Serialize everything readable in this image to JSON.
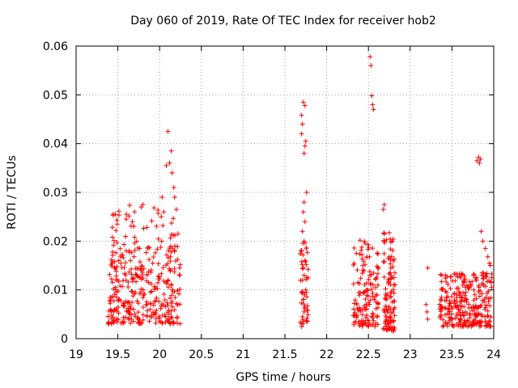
{
  "chart_data": {
    "type": "scatter",
    "title": "Day 060 of 2019, Rate Of TEC Index for receiver hob2",
    "xlabel": "GPS time / hours",
    "ylabel": "ROTI / TECUs",
    "xlim": [
      19,
      24
    ],
    "ylim": [
      0,
      0.06
    ],
    "x_ticks": [
      "19",
      "19.5",
      "20",
      "20.5",
      "21",
      "21.5",
      "22",
      "22.5",
      "23",
      "23.5",
      "24"
    ],
    "y_ticks": [
      "0",
      "0.01",
      "0.02",
      "0.03",
      "0.04",
      "0.05",
      "0.06"
    ],
    "grid": true,
    "marker": "+",
    "series": [
      {
        "name": "ROTI",
        "color": "#ff0000",
        "clusters": [
          {
            "x_range": [
              19.38,
              20.25
            ],
            "y_range": [
              0.003,
              0.019
            ],
            "count": 320
          },
          {
            "x_range": [
              19.4,
              20.2
            ],
            "y_range": [
              0.018,
              0.028
            ],
            "count": 45
          }
        ],
        "points": [
          [
            20.1,
            0.0425
          ],
          [
            20.14,
            0.0385
          ],
          [
            20.12,
            0.036
          ],
          [
            20.08,
            0.0355
          ],
          [
            20.15,
            0.034
          ],
          [
            20.17,
            0.031
          ],
          [
            20.18,
            0.029
          ],
          [
            20.2,
            0.0265
          ],
          [
            20.03,
            0.029
          ],
          [
            20.05,
            0.026
          ],
          [
            20.22,
            0.0215
          ],
          [
            20.24,
            0.0145
          ],
          [
            19.8,
            0.0275
          ],
          [
            19.78,
            0.027
          ],
          [
            19.7,
            0.026
          ],
          [
            19.6,
            0.0245
          ],
          [
            19.47,
            0.0255
          ],
          [
            20.02,
            0.025
          ],
          [
            21.72,
            0.0485
          ],
          [
            21.74,
            0.0478
          ],
          [
            21.7,
            0.0458
          ],
          [
            21.71,
            0.044
          ],
          [
            21.7,
            0.042
          ],
          [
            21.75,
            0.0405
          ],
          [
            21.74,
            0.0395
          ],
          [
            21.73,
            0.038
          ],
          [
            21.76,
            0.03
          ],
          [
            21.73,
            0.028
          ],
          [
            21.72,
            0.026
          ],
          [
            21.74,
            0.024
          ],
          [
            21.71,
            0.022
          ],
          [
            21.73,
            0.02
          ],
          [
            21.7,
            0.018
          ],
          [
            21.74,
            0.016
          ],
          [
            21.72,
            0.0145
          ],
          [
            21.73,
            0.013
          ],
          [
            21.71,
            0.012
          ],
          [
            21.75,
            0.01
          ],
          [
            21.7,
            0.0095
          ],
          [
            21.72,
            0.008
          ],
          [
            21.74,
            0.0065
          ],
          [
            21.73,
            0.0055
          ],
          [
            21.71,
            0.0045
          ],
          [
            21.72,
            0.0035
          ],
          [
            21.7,
            0.0025
          ],
          [
            22.52,
            0.0578
          ],
          [
            22.53,
            0.056
          ],
          [
            22.54,
            0.0498
          ],
          [
            22.55,
            0.048
          ],
          [
            22.56,
            0.047
          ],
          [
            22.69,
            0.0275
          ],
          [
            22.68,
            0.0265
          ],
          [
            23.21,
            0.0145
          ],
          [
            23.19,
            0.007
          ],
          [
            23.2,
            0.0055
          ],
          [
            23.21,
            0.004
          ],
          [
            23.82,
            0.0372
          ],
          [
            23.84,
            0.0368
          ],
          [
            23.8,
            0.0365
          ],
          [
            23.83,
            0.036
          ],
          [
            23.85,
            0.022
          ],
          [
            23.87,
            0.02
          ],
          [
            23.9,
            0.0185
          ],
          [
            23.93,
            0.0168
          ],
          [
            23.95,
            0.0155
          ],
          [
            23.96,
            0.015
          ]
        ],
        "clusters_more": [
          {
            "x_range": [
              21.68,
              21.78
            ],
            "y_range": [
              0.003,
              0.02
            ],
            "count": 40
          },
          {
            "x_range": [
              22.32,
              22.62
            ],
            "y_range": [
              0.0025,
              0.021
            ],
            "count": 140
          },
          {
            "x_range": [
              22.68,
              22.82
            ],
            "y_range": [
              0.0015,
              0.022
            ],
            "count": 110
          },
          {
            "x_range": [
              23.35,
              23.98
            ],
            "y_range": [
              0.0025,
              0.0135
            ],
            "count": 280
          }
        ]
      }
    ]
  }
}
